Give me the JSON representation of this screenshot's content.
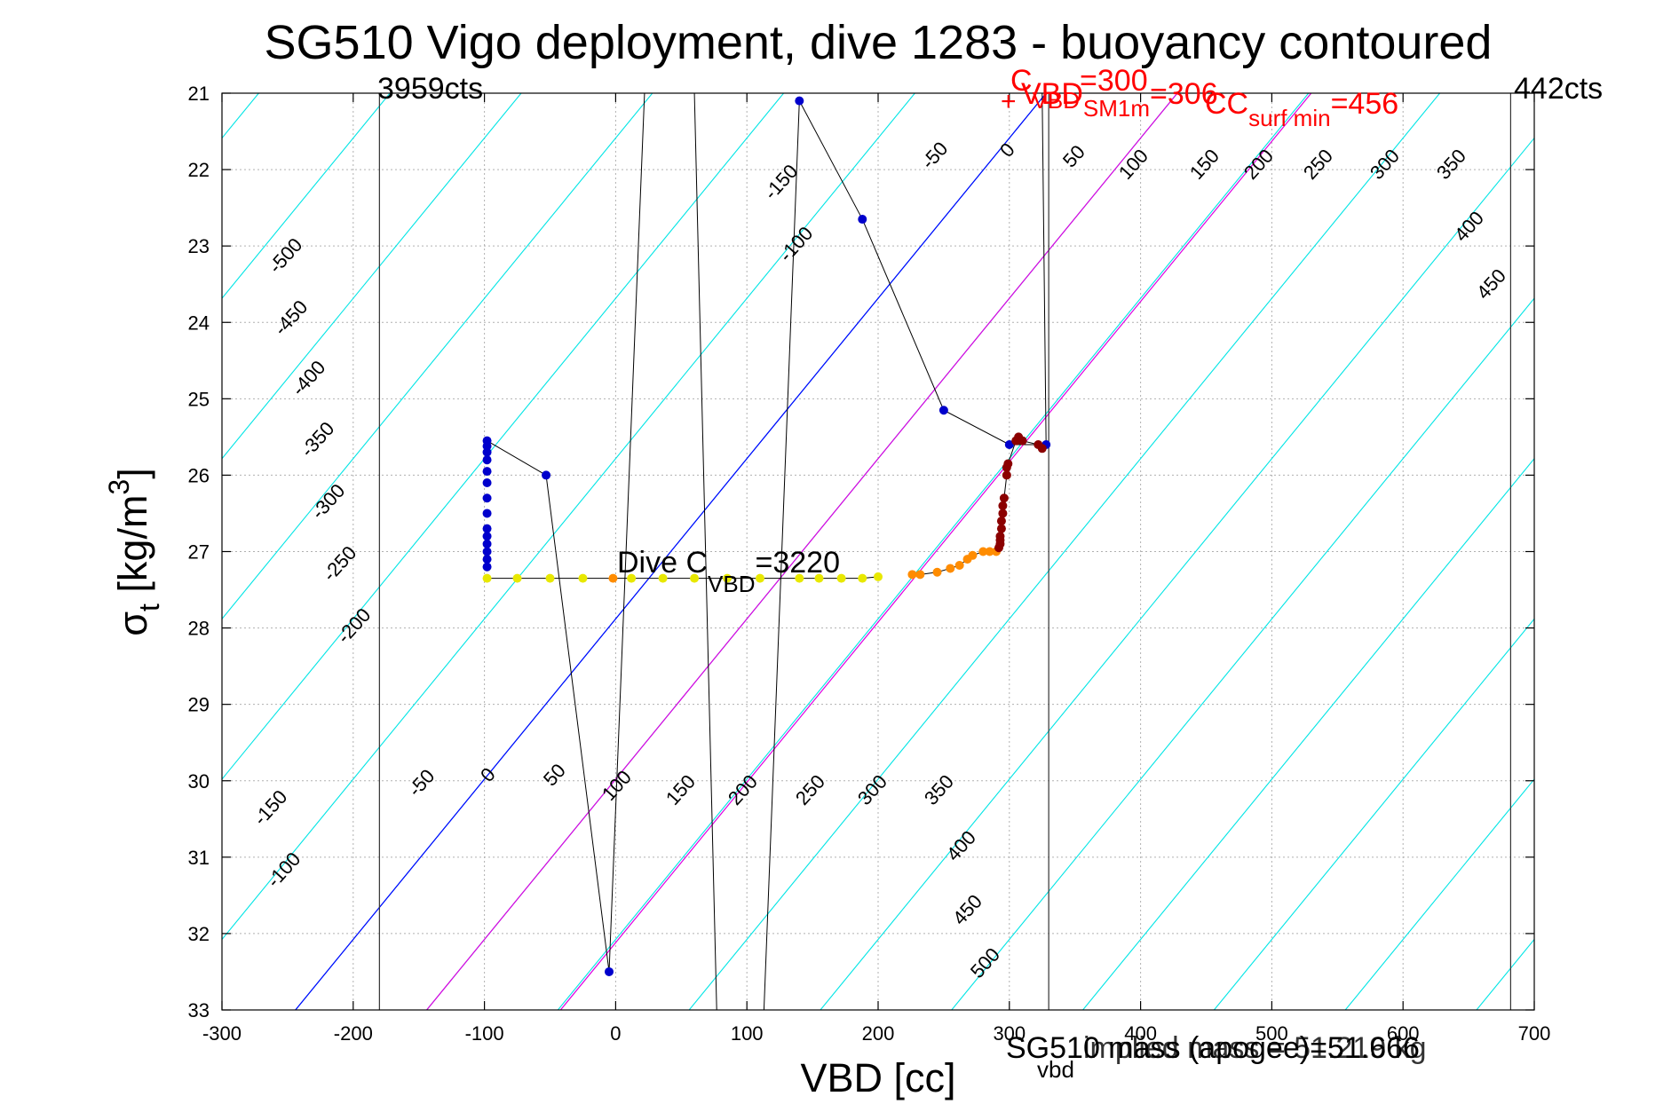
{
  "chart_data": {
    "type": "scatter",
    "title": "SG510 Vigo deployment, dive 1283 - buoyancy contoured",
    "xlabel": "VBD [cc]",
    "ylabel_main": "σ",
    "ylabel_sub": "t",
    "ylabel_rest": " [kg/m",
    "ylabel_sup": "3",
    "ylabel_end": "]",
    "xlim": [
      -300,
      700
    ],
    "ylim": [
      21,
      33
    ],
    "y_reversed": true,
    "grid": true,
    "x_ticks": [
      "-300",
      "-200",
      "-100",
      "0",
      "100",
      "200",
      "300",
      "400",
      "500",
      "600",
      "700"
    ],
    "y_ticks": [
      "21",
      "22",
      "23",
      "24",
      "25",
      "26",
      "27",
      "28",
      "29",
      "30",
      "31",
      "32",
      "33"
    ],
    "colors": {
      "contour": "#00e5e5",
      "zero_line": "#0000ff",
      "magenta_line": "#e000e0",
      "trace": "#000000",
      "annotation_red": "#ff0000",
      "descent_points": "#0000cc",
      "apogee_points": "#e8e800",
      "climb_points": "#ff8c00",
      "surface_points": "#8b0000"
    },
    "limits": {
      "min_vbd": -180,
      "min_label": "3959cts",
      "max_vbd": 682,
      "max_label": "442cts",
      "extra_line": 330
    },
    "contour_levels_top": [
      "-500",
      "-450",
      "-400",
      "-350",
      "-300",
      "-250",
      "-200",
      "-150",
      "-100",
      "-50",
      "0",
      "50",
      "100",
      "150",
      "200",
      "250",
      "300",
      "350",
      "400",
      "450"
    ],
    "contour_levels_bottom": [
      "-150",
      "-100",
      "-50",
      "0",
      "50",
      "100",
      "150",
      "200",
      "250",
      "300",
      "350",
      "400",
      "450",
      "500"
    ],
    "annotations": {
      "dive_c_vbd_main": "Dive C",
      "dive_c_vbd_sub": "VBD",
      "dive_c_vbd_val": "=3220",
      "c_vbd_main": "C",
      "c_vbd_sub": "VBD",
      "c_vbd_val": "=300",
      "vbd_sm_main": "VBD",
      "vbd_sm_sub": "SM",
      "vbd_sm_val": "=306",
      "cc_surf_main": "CC",
      "cc_surf_sub": "surf min",
      "cc_surf_val": "=456",
      "cc_1m_sub": "1m",
      "bottom_main": "SG510 mass (apogee)=51.666",
      "bottom_sub": "vbd",
      "bottom_overlap": "implied mass = 51.219 kg"
    },
    "zero_line": [
      [
        -244,
        33
      ],
      [
        328,
        21
      ]
    ],
    "magenta_lines": [
      [
        [
          -144,
          33
        ],
        [
          428,
          21
        ]
      ],
      [
        [
          -42,
          33
        ],
        [
          530,
          21
        ]
      ]
    ],
    "trace_series": [
      [
        -98,
        25.55
      ],
      [
        -53,
        26.0
      ],
      [
        -5,
        32.5
      ],
      [
        22,
        21
      ],
      [
        60,
        21
      ],
      [
        77,
        33
      ],
      [
        113,
        33
      ],
      [
        140,
        21.1
      ],
      [
        188,
        22.65
      ],
      [
        250,
        25.15
      ],
      [
        300,
        25.6
      ],
      [
        328,
        25.6
      ],
      [
        325,
        21
      ]
    ],
    "series": [
      {
        "name": "",
        "color": "#0000cc",
        "points": [
          [
            -98,
            25.55
          ],
          [
            -98,
            25.62
          ],
          [
            -98,
            25.7
          ],
          [
            -98,
            25.8
          ],
          [
            -98,
            25.95
          ],
          [
            -98,
            26.1
          ],
          [
            -98,
            26.3
          ],
          [
            -98,
            26.5
          ],
          [
            -98,
            26.7
          ],
          [
            -98,
            26.8
          ],
          [
            -98,
            26.9
          ],
          [
            -98,
            27.0
          ],
          [
            -98,
            27.1
          ],
          [
            -98,
            27.2
          ],
          [
            -53,
            26.0
          ],
          [
            -5,
            32.5
          ],
          [
            140,
            21.1
          ],
          [
            188,
            22.65
          ],
          [
            250,
            25.15
          ],
          [
            300,
            25.6
          ],
          [
            328,
            25.6
          ]
        ]
      },
      {
        "name": "",
        "color": "#e8e800",
        "points": [
          [
            -98,
            27.35
          ],
          [
            -75,
            27.35
          ],
          [
            -50,
            27.35
          ],
          [
            -25,
            27.35
          ],
          [
            12,
            27.35
          ],
          [
            36,
            27.35
          ],
          [
            60,
            27.35
          ],
          [
            85,
            27.35
          ],
          [
            110,
            27.35
          ],
          [
            140,
            27.35
          ],
          [
            155,
            27.35
          ],
          [
            172,
            27.35
          ],
          [
            188,
            27.35
          ],
          [
            200,
            27.33
          ]
        ]
      },
      {
        "name": "",
        "color": "#ff8c00",
        "points": [
          [
            -2,
            27.35
          ],
          [
            226,
            27.3
          ],
          [
            232,
            27.3
          ],
          [
            245,
            27.27
          ],
          [
            255,
            27.22
          ],
          [
            262,
            27.18
          ],
          [
            268,
            27.1
          ],
          [
            272,
            27.05
          ],
          [
            280,
            27.0
          ],
          [
            285,
            27.0
          ],
          [
            290,
            27.0
          ]
        ]
      },
      {
        "name": "",
        "color": "#8b0000",
        "points": [
          [
            292,
            26.95
          ],
          [
            293,
            26.9
          ],
          [
            293,
            26.85
          ],
          [
            293,
            26.8
          ],
          [
            294,
            26.7
          ],
          [
            294,
            26.6
          ],
          [
            295,
            26.5
          ],
          [
            295,
            26.4
          ],
          [
            296,
            26.3
          ],
          [
            298,
            26.0
          ],
          [
            298,
            25.9
          ],
          [
            299,
            25.85
          ],
          [
            305,
            25.55
          ],
          [
            307,
            25.5
          ],
          [
            310,
            25.55
          ],
          [
            322,
            25.6
          ],
          [
            325,
            25.65
          ]
        ]
      }
    ]
  }
}
